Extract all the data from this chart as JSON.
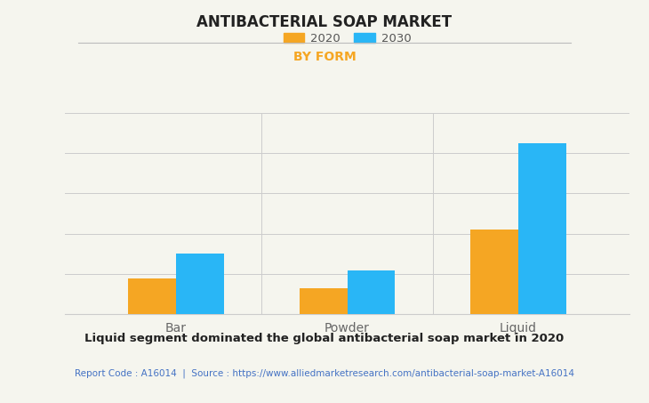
{
  "title": "ANTIBACTERIAL SOAP MARKET",
  "subtitle": "BY FORM",
  "categories": [
    "Bar",
    "Powder",
    "Liquid"
  ],
  "values_2020": [
    1.8,
    1.3,
    4.2
  ],
  "values_2030": [
    3.0,
    2.2,
    8.5
  ],
  "color_2020": "#F5A623",
  "color_2030": "#29B6F6",
  "subtitle_color": "#F5A623",
  "title_color": "#222222",
  "background_color": "#F5F5EE",
  "plot_background_color": "#F5F5EE",
  "legend_labels": [
    "2020",
    "2030"
  ],
  "footer_bold": "Liquid segment dominated the global antibacterial soap market in 2020",
  "footer_report": "Report Code : A16014  |  Source : https://www.alliedmarketresearch.com/antibacterial-soap-market-A16014",
  "footer_color": "#4472C4",
  "ylim": [
    0,
    10
  ],
  "bar_width": 0.28,
  "grid_color": "#CCCCCC",
  "tick_label_color": "#666666"
}
